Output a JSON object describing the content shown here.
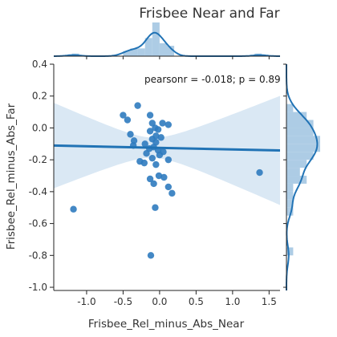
{
  "chart_data": {
    "type": "scatter",
    "title": "Frisbee Near and Far",
    "xlabel": "Frisbee_Rel_minus_Abs_Near",
    "ylabel": "Frisbee_Rel_minus_Abs_Far",
    "xlim": [
      -1.45,
      1.65
    ],
    "ylim": [
      -1.02,
      0.4
    ],
    "xticks": [
      "-1.0",
      "-0.5",
      "0.0",
      "0.5",
      "1.0",
      "1.5"
    ],
    "xtick_values": [
      -1.0,
      -0.5,
      0.0,
      0.5,
      1.0,
      1.5
    ],
    "yticks": [
      "0.4",
      "0.2",
      "0.0",
      "-0.2",
      "-0.4",
      "-0.6",
      "-0.8",
      "-1.0"
    ],
    "ytick_values": [
      0.4,
      0.2,
      0.0,
      -0.2,
      -0.4,
      -0.6,
      -0.8,
      -1.0
    ],
    "annotation": "pearsonr = -0.018; p = 0.89",
    "regression": {
      "slope": -0.0099,
      "intercept": -0.125
    },
    "grid": false,
    "point_color": "#2f7bbf",
    "line_color": "#2173b5",
    "band_color": "#c6dcee",
    "hist_color": "#9fc3e0",
    "points": [
      {
        "x": -1.18,
        "y": -0.51
      },
      {
        "x": 1.37,
        "y": -0.28
      },
      {
        "x": -0.3,
        "y": 0.14
      },
      {
        "x": -0.13,
        "y": 0.08
      },
      {
        "x": -0.5,
        "y": 0.08
      },
      {
        "x": -0.44,
        "y": 0.05
      },
      {
        "x": -0.1,
        "y": 0.03
      },
      {
        "x": 0.04,
        "y": 0.03
      },
      {
        "x": 0.12,
        "y": 0.02
      },
      {
        "x": -0.06,
        "y": 0.0
      },
      {
        "x": -0.02,
        "y": -0.01
      },
      {
        "x": -0.13,
        "y": -0.02
      },
      {
        "x": -0.4,
        "y": -0.04
      },
      {
        "x": -0.05,
        "y": -0.05
      },
      {
        "x": 0.02,
        "y": -0.06
      },
      {
        "x": -0.1,
        "y": -0.07
      },
      {
        "x": -0.35,
        "y": -0.08
      },
      {
        "x": -0.05,
        "y": -0.09
      },
      {
        "x": -0.2,
        "y": -0.1
      },
      {
        "x": -0.36,
        "y": -0.11
      },
      {
        "x": -0.08,
        "y": -0.12
      },
      {
        "x": -0.14,
        "y": -0.13
      },
      {
        "x": -0.02,
        "y": -0.14
      },
      {
        "x": 0.05,
        "y": -0.15
      },
      {
        "x": -0.18,
        "y": -0.16
      },
      {
        "x": 0.0,
        "y": -0.17
      },
      {
        "x": -0.1,
        "y": -0.19
      },
      {
        "x": 0.12,
        "y": -0.2
      },
      {
        "x": -0.27,
        "y": -0.21
      },
      {
        "x": -0.21,
        "y": -0.22
      },
      {
        "x": -0.05,
        "y": -0.23
      },
      {
        "x": -0.01,
        "y": -0.3
      },
      {
        "x": 0.06,
        "y": -0.31
      },
      {
        "x": -0.13,
        "y": -0.32
      },
      {
        "x": -0.08,
        "y": -0.35
      },
      {
        "x": 0.12,
        "y": -0.37
      },
      {
        "x": 0.17,
        "y": -0.41
      },
      {
        "x": -0.06,
        "y": -0.5
      },
      {
        "x": -0.12,
        "y": -0.8
      }
    ]
  }
}
